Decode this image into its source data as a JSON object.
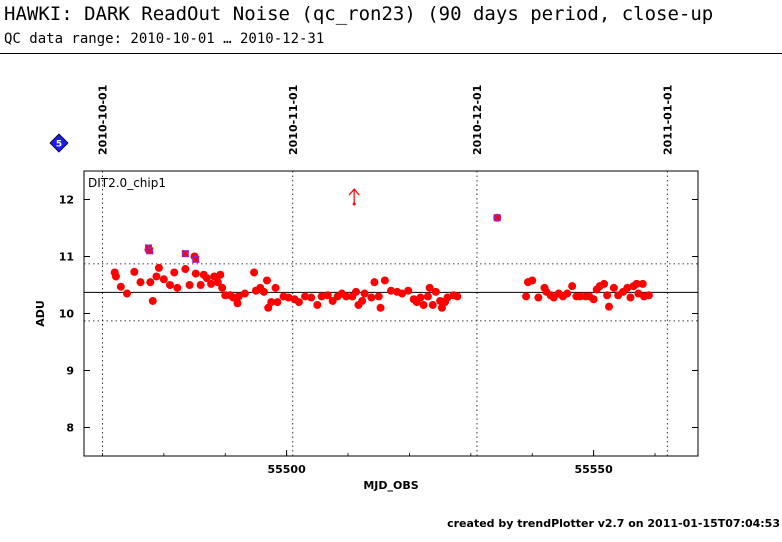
{
  "header": {
    "title": "HAWKI: DARK ReadOut Noise (qc_ron23) (90 days period, close-up",
    "subtitle": "QC data range: 2010-10-01 … 2010-12-31"
  },
  "footer": {
    "text": "created by trendPlotter v2.7 on 2011-01-15T07:04:53"
  },
  "badge": {
    "number": "5",
    "color": "#1a1aff"
  },
  "colors": {
    "main": "#ff0000",
    "highlight": "#8a2be2",
    "reference": "#000000"
  },
  "chart_data": {
    "type": "scatter",
    "panel_label": "DIT2.0_chip1",
    "xlabel": "MJD_OBS",
    "ylabel": "ADU",
    "xlim": [
      55467,
      55567
    ],
    "ylim": [
      7.5,
      12.5
    ],
    "x_ticks": [
      55500,
      55550
    ],
    "y_ticks": [
      8,
      9,
      10,
      11,
      12
    ],
    "date_ticks": [
      {
        "label": "2010-10-01",
        "mjd": 55470
      },
      {
        "label": "2010-11-01",
        "mjd": 55501
      },
      {
        "label": "2010-12-01",
        "mjd": 55531
      },
      {
        "label": "2011-01-01",
        "mjd": 55562
      }
    ],
    "reference_line": 10.37,
    "limits": [
      9.87,
      10.87
    ],
    "outlier_arrow": {
      "x": 55511,
      "y": 11.92
    },
    "series": [
      {
        "points": [
          [
            55472.0,
            10.72
          ],
          [
            55472.2,
            10.65
          ],
          [
            55473,
            10.47
          ],
          [
            55474,
            10.35
          ],
          [
            55475.2,
            10.73
          ],
          [
            55476.2,
            10.55
          ],
          [
            55477.5,
            11.12
          ],
          [
            55477.8,
            10.55
          ],
          [
            55478.2,
            10.22
          ],
          [
            55478.8,
            10.65
          ],
          [
            55479.2,
            10.8
          ],
          [
            55480,
            10.6
          ],
          [
            55481,
            10.5
          ],
          [
            55481.7,
            10.72
          ],
          [
            55482.2,
            10.45
          ],
          [
            55483.5,
            10.78
          ],
          [
            55484.2,
            10.5
          ],
          [
            55485,
            11.0
          ],
          [
            55485.2,
            10.7
          ],
          [
            55486,
            10.5
          ],
          [
            55486.5,
            10.68
          ],
          [
            55487,
            10.62
          ],
          [
            55487.7,
            10.52
          ],
          [
            55488.2,
            10.65
          ],
          [
            55488.8,
            10.55
          ],
          [
            55489.2,
            10.68
          ],
          [
            55489.5,
            10.45
          ],
          [
            55490,
            10.32
          ],
          [
            55490.8,
            10.32
          ],
          [
            55491.3,
            10.28
          ],
          [
            55492,
            10.18
          ],
          [
            55492.2,
            10.3
          ],
          [
            55493.2,
            10.35
          ],
          [
            55494.7,
            10.72
          ],
          [
            55495,
            10.4
          ],
          [
            55495.7,
            10.45
          ],
          [
            55496.3,
            10.38
          ],
          [
            55496.8,
            10.58
          ],
          [
            55497,
            10.1
          ],
          [
            55497.5,
            10.2
          ],
          [
            55498.2,
            10.45
          ],
          [
            55498.5,
            10.2
          ],
          [
            55499.5,
            10.3
          ],
          [
            55500.3,
            10.28
          ],
          [
            55501.3,
            10.25
          ],
          [
            55502,
            10.2
          ],
          [
            55503,
            10.3
          ],
          [
            55504,
            10.28
          ],
          [
            55505,
            10.15
          ],
          [
            55505.7,
            10.3
          ],
          [
            55506.7,
            10.32
          ],
          [
            55507.5,
            10.22
          ],
          [
            55508.3,
            10.3
          ],
          [
            55509,
            10.35
          ],
          [
            55509.7,
            10.3
          ],
          [
            55510.7,
            10.3
          ],
          [
            55511.3,
            10.38
          ],
          [
            55511.7,
            10.15
          ],
          [
            55512.3,
            10.22
          ],
          [
            55512.7,
            10.35
          ],
          [
            55513.8,
            10.28
          ],
          [
            55514.3,
            10.55
          ],
          [
            55515,
            10.3
          ],
          [
            55515.3,
            10.1
          ],
          [
            55516,
            10.58
          ],
          [
            55517,
            10.4
          ],
          [
            55518,
            10.38
          ],
          [
            55518.8,
            10.35
          ],
          [
            55519.8,
            10.4
          ],
          [
            55520.7,
            10.25
          ],
          [
            55521.2,
            10.2
          ],
          [
            55521.8,
            10.28
          ],
          [
            55522.3,
            10.15
          ],
          [
            55523,
            10.3
          ],
          [
            55523.3,
            10.45
          ],
          [
            55523.8,
            10.15
          ],
          [
            55524.3,
            10.38
          ],
          [
            55525,
            10.22
          ],
          [
            55525.3,
            10.1
          ],
          [
            55525.8,
            10.2
          ],
          [
            55526.2,
            10.28
          ],
          [
            55527.2,
            10.32
          ],
          [
            55527.8,
            10.3
          ],
          [
            55534.3,
            11.68
          ],
          [
            55539,
            10.3
          ],
          [
            55539.3,
            10.55
          ],
          [
            55540,
            10.58
          ],
          [
            55541,
            10.28
          ],
          [
            55542,
            10.45
          ],
          [
            55542.3,
            10.38
          ],
          [
            55543,
            10.32
          ],
          [
            55543.5,
            10.28
          ],
          [
            55544.3,
            10.35
          ],
          [
            55545,
            10.3
          ],
          [
            55545.7,
            10.35
          ],
          [
            55546.5,
            10.48
          ],
          [
            55547.2,
            10.3
          ],
          [
            55547.8,
            10.3
          ],
          [
            55548.7,
            10.3
          ],
          [
            55549.3,
            10.3
          ],
          [
            55550,
            10.25
          ],
          [
            55550.5,
            10.42
          ],
          [
            55551,
            10.48
          ],
          [
            55551.7,
            10.52
          ],
          [
            55552.2,
            10.32
          ],
          [
            55552.5,
            10.12
          ],
          [
            55553.3,
            10.45
          ],
          [
            55554,
            10.32
          ],
          [
            55554.8,
            10.38
          ],
          [
            55555.5,
            10.45
          ],
          [
            55556,
            10.28
          ],
          [
            55556.5,
            10.48
          ],
          [
            55557,
            10.52
          ],
          [
            55557.3,
            10.35
          ],
          [
            55558,
            10.52
          ],
          [
            55558.2,
            10.3
          ],
          [
            55559,
            10.32
          ]
        ]
      }
    ],
    "highlighted": [
      [
        55477.5,
        11.15
      ],
      [
        55477.7,
        11.1
      ],
      [
        55483.5,
        11.05
      ],
      [
        55485.2,
        10.95
      ],
      [
        55534.3,
        11.68
      ]
    ]
  }
}
